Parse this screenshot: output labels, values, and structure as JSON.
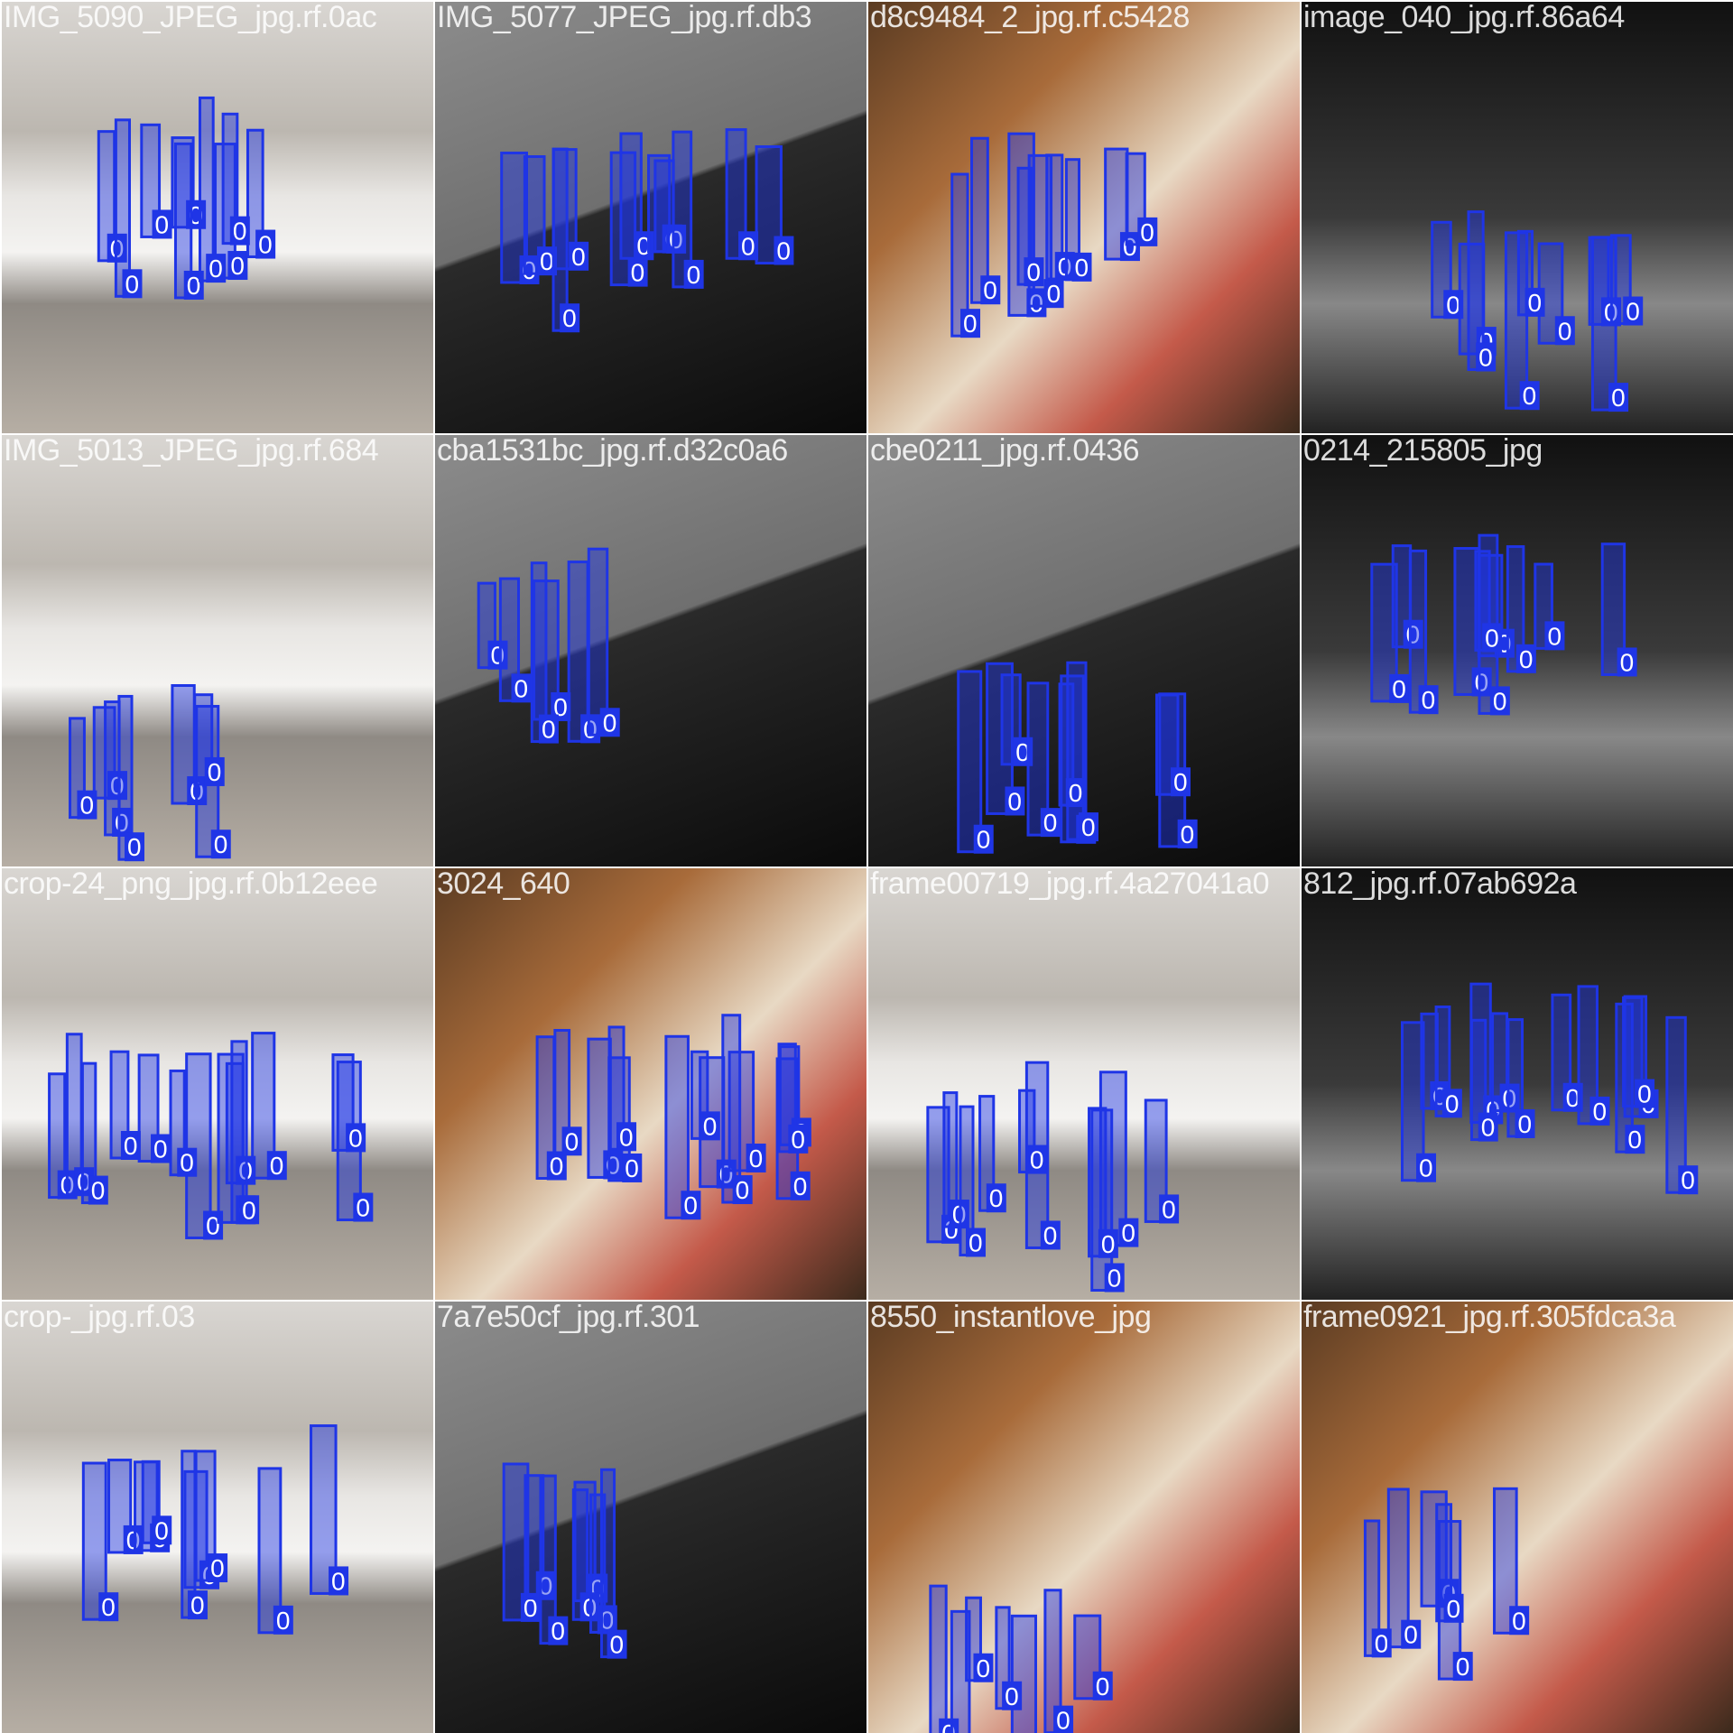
{
  "mosaic": {
    "box_label": "0",
    "box_color": "#1f35e6",
    "tiles": [
      {
        "filename": "IMG_5090_JPEG_jpg.rf.0ac",
        "style": "shelf"
      },
      {
        "filename": "IMG_5077_JPEG_jpg.rf.db3",
        "style": "gray"
      },
      {
        "filename": "d8c9484_2_jpg.rf.c5428",
        "style": "wood"
      },
      {
        "filename": "image_040_jpg.rf.86a64",
        "style": "dark"
      },
      {
        "filename": "IMG_5013_JPEG_jpg.rf.684",
        "style": "shelf"
      },
      {
        "filename": "cba1531bc_jpg.rf.d32c0a6",
        "style": "gray"
      },
      {
        "filename": "cbe0211_jpg.rf.0436",
        "style": "gray"
      },
      {
        "filename": "0214_215805_jpg",
        "style": "dark"
      },
      {
        "filename": "crop-24_png_jpg.rf.0b12eee",
        "style": "shelf"
      },
      {
        "filename": "3024_640",
        "style": "wood"
      },
      {
        "filename": "frame00719_jpg.rf.4a27041a0",
        "style": "shelf"
      },
      {
        "filename": "812_jpg.rf.07ab692a",
        "style": "dark"
      },
      {
        "filename": "crop-_jpg.rf.03",
        "style": "shelf"
      },
      {
        "filename": "7a7e50cf_jpg.rf.301",
        "style": "gray"
      },
      {
        "filename": "8550_instantlove_jpg",
        "style": "wood"
      },
      {
        "filename": "frame0921_jpg.rf.305fdca3a",
        "style": "wood"
      }
    ]
  }
}
